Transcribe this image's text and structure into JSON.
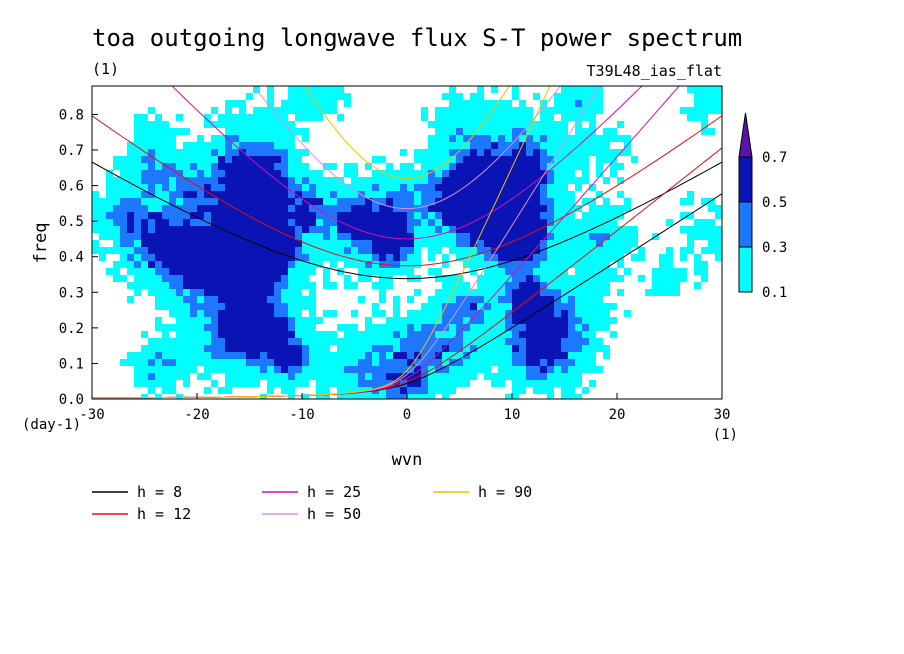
{
  "chart_data": {
    "type": "heatmap",
    "title": "toa outgoing longwave flux S-T power spectrum",
    "subtitle_left": "(1)",
    "subtitle_right": "T39L48_ias_flat",
    "xlabel": "wvn",
    "ylabel": "freq",
    "x_unit": "(1)",
    "y_unit": "(day-1)",
    "xlim": [
      -30,
      30
    ],
    "ylim": [
      0,
      0.88
    ],
    "x_ticks": [
      "-30",
      "-20",
      "-10",
      "0",
      "10",
      "20",
      "30"
    ],
    "y_ticks": [
      "0.0",
      "0.1",
      "0.2",
      "0.3",
      "0.4",
      "0.5",
      "0.6",
      "0.7",
      "0.8"
    ],
    "colorbar": {
      "levels": [
        "0.1",
        "0.3",
        "0.5",
        "0.7"
      ],
      "colors": [
        "#00ffff",
        "#1e78ff",
        "#0a14b4",
        "#5a14aa"
      ]
    },
    "curves": [
      {
        "label": "h =  8",
        "h": 8,
        "color": "#000000"
      },
      {
        "label": "h = 12",
        "h": 12,
        "color": "#e01010"
      },
      {
        "label": "h = 25",
        "h": 25,
        "color": "#d010b0"
      },
      {
        "label": "h = 50",
        "h": 50,
        "color": "#dd90dd"
      },
      {
        "label": "h = 90",
        "h": 90,
        "color": "#f0c000"
      }
    ],
    "grid": false
  }
}
